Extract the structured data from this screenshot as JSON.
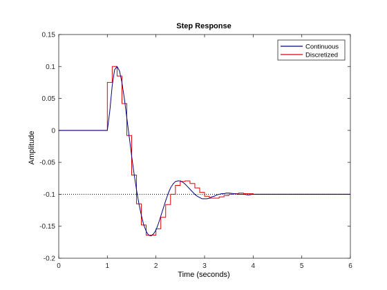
{
  "chart_data": {
    "type": "line",
    "title": "Step Response",
    "xlabel": "Time (seconds)",
    "ylabel": "Amplitude",
    "xlim": [
      0,
      6
    ],
    "ylim": [
      -0.2,
      0.15
    ],
    "xticks": [
      "0",
      "1",
      "2",
      "3",
      "4",
      "5",
      "6"
    ],
    "yticks": [
      "0.15",
      "0.1",
      "0.05",
      "0",
      "-0.05",
      "-0.1",
      "-0.15",
      "-0.2"
    ],
    "grid": false,
    "legend_position": "top-right",
    "reference_line": {
      "y": -0.1,
      "style": "dotted"
    },
    "colors": {
      "Continuous": "#00007f",
      "Discretized": "#e00000"
    },
    "series": [
      {
        "name": "Continuous",
        "style": "line",
        "x": [
          0,
          1.0,
          1.05,
          1.1,
          1.15,
          1.2,
          1.25,
          1.3,
          1.35,
          1.4,
          1.45,
          1.5,
          1.55,
          1.6,
          1.65,
          1.7,
          1.75,
          1.8,
          1.85,
          1.9,
          1.95,
          2.0,
          2.05,
          2.1,
          2.15,
          2.2,
          2.25,
          2.3,
          2.35,
          2.4,
          2.45,
          2.5,
          2.55,
          2.6,
          2.65,
          2.7,
          2.75,
          2.8,
          2.85,
          2.9,
          2.95,
          3.0,
          3.05,
          3.1,
          3.15,
          3.2,
          3.25,
          3.3,
          3.35,
          3.4,
          3.45,
          3.5,
          3.6,
          3.7,
          3.8,
          3.9,
          4.0,
          4.1,
          4.2,
          4.3,
          4.4,
          4.5,
          4.6,
          4.7,
          4.8,
          4.9,
          5.0,
          5.1,
          5.2,
          5.3,
          5.5,
          5.7,
          6.0
        ],
        "y": [
          0,
          0,
          0.03,
          0.07,
          0.095,
          0.1,
          0.093,
          0.075,
          0.05,
          0.02,
          -0.01,
          -0.04,
          -0.068,
          -0.093,
          -0.115,
          -0.133,
          -0.148,
          -0.158,
          -0.164,
          -0.165,
          -0.162,
          -0.156,
          -0.146,
          -0.134,
          -0.122,
          -0.11,
          -0.099,
          -0.09,
          -0.084,
          -0.08,
          -0.079,
          -0.079,
          -0.081,
          -0.084,
          -0.088,
          -0.092,
          -0.096,
          -0.1,
          -0.103,
          -0.105,
          -0.107,
          -0.107,
          -0.107,
          -0.106,
          -0.104,
          -0.103,
          -0.101,
          -0.1,
          -0.099,
          -0.099,
          -0.098,
          -0.098,
          -0.099,
          -0.1,
          -0.1,
          -0.101,
          -0.1,
          -0.1,
          -0.1,
          -0.1,
          -0.1,
          -0.1,
          -0.1,
          -0.1,
          -0.1,
          -0.1,
          -0.1,
          -0.1,
          -0.1,
          -0.1,
          -0.1,
          -0.1,
          -0.1
        ]
      },
      {
        "name": "Discretized",
        "style": "stairs",
        "x": [
          0,
          1.0,
          1.1,
          1.2,
          1.3,
          1.4,
          1.5,
          1.6,
          1.7,
          1.8,
          1.9,
          2.0,
          2.1,
          2.2,
          2.3,
          2.4,
          2.5,
          2.6,
          2.7,
          2.8,
          2.9,
          3.0,
          3.1,
          3.2,
          3.3,
          3.4,
          3.5,
          3.6,
          3.7,
          3.8,
          3.9,
          4.0,
          4.1,
          4.2,
          4.3,
          4.4,
          4.5,
          4.6,
          4.7,
          4.8,
          4.9,
          5.0,
          5.1,
          5.2,
          5.3,
          5.4,
          5.5,
          5.6,
          5.7,
          5.8,
          5.9,
          6.0
        ],
        "y": [
          0,
          0.075,
          0.1,
          0.085,
          0.042,
          -0.008,
          -0.07,
          -0.115,
          -0.148,
          -0.164,
          -0.164,
          -0.154,
          -0.136,
          -0.116,
          -0.1,
          -0.086,
          -0.08,
          -0.079,
          -0.083,
          -0.09,
          -0.097,
          -0.103,
          -0.106,
          -0.106,
          -0.104,
          -0.102,
          -0.1,
          -0.099,
          -0.098,
          -0.099,
          -0.099,
          -0.1,
          -0.1,
          -0.1,
          -0.1,
          -0.1,
          -0.1,
          -0.1,
          -0.1,
          -0.1,
          -0.1,
          -0.1,
          -0.1,
          -0.1,
          -0.1,
          -0.1,
          -0.1,
          -0.1,
          -0.1,
          -0.1,
          -0.1,
          -0.1
        ]
      }
    ]
  }
}
